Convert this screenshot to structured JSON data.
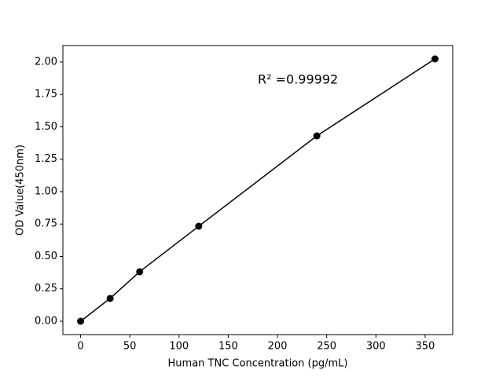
{
  "chart_data": {
    "type": "line",
    "xlabel": "Human TNC Concentration (pg/mL)",
    "ylabel": "OD Value(450nm)",
    "annotation": "R² =0.99992",
    "x": [
      0,
      30,
      60,
      120,
      240,
      360
    ],
    "series": [
      {
        "color": "#000000",
        "values": [
          0.0,
          0.176,
          0.382,
          0.733,
          1.43,
          2.024
        ]
      }
    ],
    "markers": true,
    "xlim": [
      -18,
      378
    ],
    "ylim": [
      -0.103,
      2.127
    ],
    "xticks": [
      0,
      50,
      100,
      150,
      200,
      250,
      300,
      350
    ],
    "yticks": [
      {
        "value": 0,
        "label": "0.00"
      },
      {
        "value": 0.25,
        "label": "0.25"
      },
      {
        "value": 0.5,
        "label": "0.50"
      },
      {
        "value": 0.75,
        "label": "0.75"
      },
      {
        "value": 1,
        "label": "1.00"
      },
      {
        "value": 1.25,
        "label": "1.25"
      },
      {
        "value": 1.5,
        "label": "1.50"
      },
      {
        "value": 1.75,
        "label": "1.75"
      },
      {
        "value": 2,
        "label": "2.00"
      }
    ]
  }
}
